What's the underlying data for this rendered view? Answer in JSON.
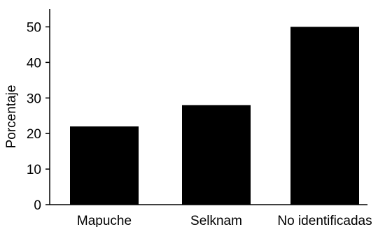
{
  "chart_data": {
    "type": "bar",
    "title": "",
    "xlabel": "",
    "ylabel": "Porcentaje",
    "categories": [
      "Mapuche",
      "Selknam",
      "No identificadas"
    ],
    "values": [
      22,
      28,
      50
    ],
    "ylim": [
      0,
      55
    ],
    "yticks": [
      "0",
      "10",
      "20",
      "30",
      "40",
      "50"
    ],
    "grid": false,
    "bar_color": "#000000"
  }
}
